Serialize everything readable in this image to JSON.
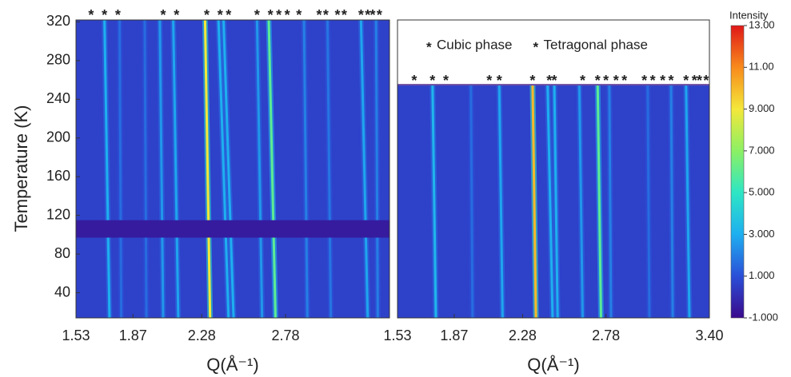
{
  "chart_data": {
    "type": "heatmap",
    "ylabel": "Temperature (K)",
    "background_intensity": 0.6,
    "colorbar": {
      "label": "Intensity",
      "clim": [
        -1,
        13
      ],
      "ticks": [
        {
          "value": 13,
          "label": "13.00"
        },
        {
          "value": 11,
          "label": "11.00"
        },
        {
          "value": 9,
          "label": "9.000"
        },
        {
          "value": 7,
          "label": "7.000"
        },
        {
          "value": 5,
          "label": "5.000"
        },
        {
          "value": 3,
          "label": "3.000"
        },
        {
          "value": 1,
          "label": "1.000"
        },
        {
          "value": -1,
          "label": "-1.000"
        }
      ],
      "colorscale": [
        "#3a0a8c",
        "#2b4fd8",
        "#1eaff0",
        "#2ee6c4",
        "#8cf064",
        "#f4e83a",
        "#f88a1c",
        "#e01818"
      ]
    },
    "phases": [
      {
        "name": "Cubic phase",
        "symbol": "*",
        "color": "#111111"
      },
      {
        "name": "Tetragonal phase",
        "symbol": "*",
        "color": "#e02020"
      }
    ],
    "panels": [
      {
        "xlabel": "Q(Å⁻¹)",
        "xlim": [
          1.53,
          3.4
        ],
        "ylim": [
          14,
          322
        ],
        "xticks": [
          1.53,
          1.87,
          2.28,
          2.78
        ],
        "yticks": [
          40,
          80,
          120,
          160,
          200,
          240,
          280,
          320
        ],
        "gap": [
          97,
          115
        ],
        "gap_intensity": -0.5,
        "peaks": [
          {
            "q_top": 1.7,
            "q_bottom": 1.73,
            "intensity": 3
          },
          {
            "q_top": 1.79,
            "q_bottom": 1.8,
            "intensity": 1.6
          },
          {
            "q_top": 1.94,
            "q_bottom": 1.95,
            "intensity": 1.6
          },
          {
            "q_top": 2.03,
            "q_bottom": 2.05,
            "intensity": 2.5
          },
          {
            "q_top": 2.11,
            "q_bottom": 2.14,
            "intensity": 2.8
          },
          {
            "q_top": 2.3,
            "q_bottom": 2.33,
            "intensity": 9
          },
          {
            "q_top": 2.38,
            "q_bottom": 2.44,
            "intensity": 3
          },
          {
            "q_top": 2.41,
            "q_bottom": 2.47,
            "intensity": 3
          },
          {
            "q_top": 2.61,
            "q_bottom": 2.64,
            "intensity": 2.5
          },
          {
            "q_top": 2.68,
            "q_bottom": 2.72,
            "intensity": 6
          },
          {
            "q_top": 2.89,
            "q_bottom": 2.91,
            "intensity": 2
          },
          {
            "q_top": 3.03,
            "q_bottom": 3.05,
            "intensity": 1.8
          },
          {
            "q_top": 3.23,
            "q_bottom": 3.27,
            "intensity": 2.8
          },
          {
            "q_top": 3.32,
            "q_bottom": 3.33,
            "intensity": 2
          }
        ],
        "phase_markers": [
          [
            1.7,
            2.05,
            2.31,
            2.69,
            2.86,
            3.02,
            3.13,
            3.23,
            3.34
          ],
          [
            1.62,
            1.78,
            2.13,
            2.39,
            2.44,
            2.61,
            2.74,
            2.79,
            2.98,
            3.09,
            3.27,
            3.3
          ]
        ]
      },
      {
        "xlabel": "Q(Å⁻¹)",
        "xlim": [
          1.53,
          3.4
        ],
        "ylim": [
          14,
          322
        ],
        "data_top": 255,
        "xticks": [
          1.53,
          1.87,
          2.28,
          2.78,
          {
            "value": 3.4,
            "label": "3.40"
          }
        ],
        "legend": true,
        "peaks": [
          {
            "q_top": 1.74,
            "q_bottom": 1.76,
            "intensity": 3.2
          },
          {
            "q_top": 1.97,
            "q_bottom": 1.98,
            "intensity": 1.6
          },
          {
            "q_top": 2.14,
            "q_bottom": 2.16,
            "intensity": 2.8
          },
          {
            "q_top": 2.34,
            "q_bottom": 2.36,
            "intensity": 10
          },
          {
            "q_top": 2.43,
            "q_bottom": 2.46,
            "intensity": 3
          },
          {
            "q_top": 2.47,
            "q_bottom": 2.49,
            "intensity": 3
          },
          {
            "q_top": 2.62,
            "q_bottom": 2.64,
            "intensity": 2.5
          },
          {
            "q_top": 2.73,
            "q_bottom": 2.75,
            "intensity": 6
          },
          {
            "q_top": 2.8,
            "q_bottom": 2.81,
            "intensity": 2
          },
          {
            "q_top": 3.03,
            "q_bottom": 3.04,
            "intensity": 1.6
          },
          {
            "q_top": 3.17,
            "q_bottom": 3.18,
            "intensity": 2
          },
          {
            "q_top": 3.26,
            "q_bottom": 3.28,
            "intensity": 2.8
          }
        ],
        "phase_markers": [
          [
            1.74,
            2.08,
            2.34,
            2.73,
            2.89,
            3.06,
            3.17,
            3.26,
            3.38
          ],
          [
            1.63,
            1.82,
            2.14,
            2.44,
            2.47,
            2.64,
            2.78,
            2.84,
            3.01,
            3.12,
            3.31,
            3.34
          ]
        ]
      }
    ]
  }
}
